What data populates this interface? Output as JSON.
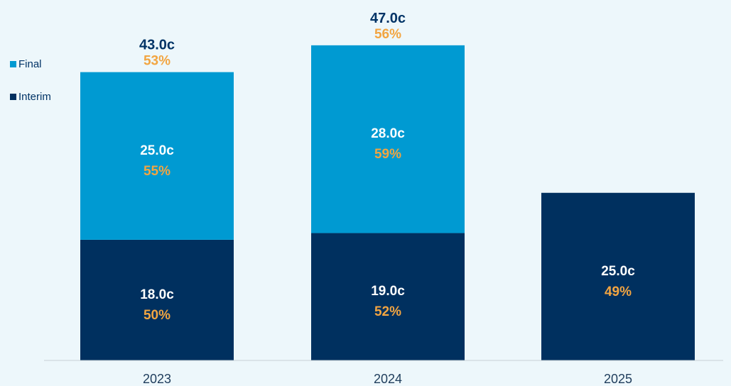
{
  "chart_data": {
    "type": "bar",
    "stacked": true,
    "categories": [
      "2023",
      "2024",
      "2025"
    ],
    "series": [
      {
        "name": "Interim",
        "color": "#00305f",
        "values": [
          18.0,
          19.0,
          25.0
        ],
        "value_labels": [
          "18.0c",
          "19.0c",
          "25.0c"
        ],
        "pct_labels": [
          "50%",
          "52%",
          "49%"
        ]
      },
      {
        "name": "Final",
        "color": "#009ad2",
        "values": [
          25.0,
          28.0,
          null
        ],
        "value_labels": [
          "25.0c",
          "28.0c",
          null
        ],
        "pct_labels": [
          "55%",
          "59%",
          null
        ]
      }
    ],
    "totals": [
      {
        "value_label": "43.0c",
        "pct_label": "53%"
      },
      {
        "value_label": "47.0c",
        "pct_label": "56%"
      },
      null
    ],
    "pct_color": "#f2a541",
    "total_color": "#003366",
    "ylim": [
      0,
      50
    ],
    "grid": false,
    "legend_position": "left"
  }
}
